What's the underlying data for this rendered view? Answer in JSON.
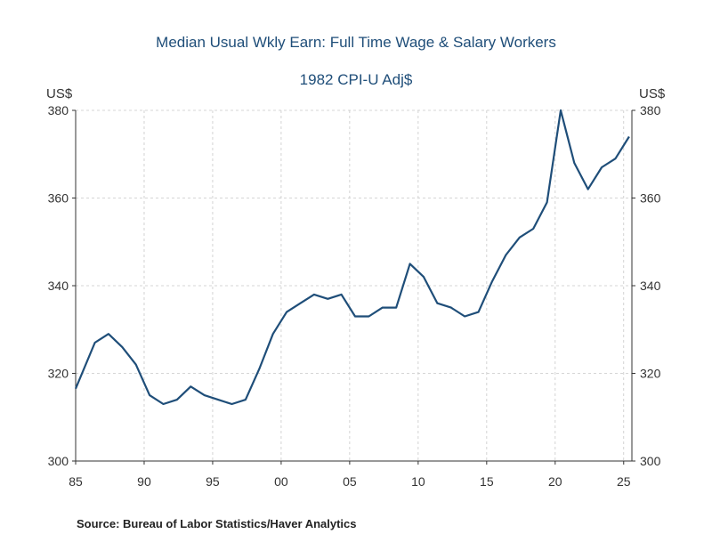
{
  "chart_data": {
    "type": "line",
    "title": "Median Usual Wkly Earn: Full Time Wage & Salary Workers",
    "subtitle": "1982 CPI-U Adj$",
    "y_unit_left": "US$",
    "y_unit_right": "US$",
    "ylim": [
      300,
      380
    ],
    "y_ticks": [
      300,
      320,
      340,
      360,
      380
    ],
    "xlim": [
      1985,
      2025.6
    ],
    "x_ticks": [
      {
        "value": 1985,
        "label": "85"
      },
      {
        "value": 1990,
        "label": "90"
      },
      {
        "value": 1995,
        "label": "95"
      },
      {
        "value": 2000,
        "label": "00"
      },
      {
        "value": 2005,
        "label": "05"
      },
      {
        "value": 2010,
        "label": "10"
      },
      {
        "value": 2015,
        "label": "15"
      },
      {
        "value": 2020,
        "label": "20"
      },
      {
        "value": 2025,
        "label": "25"
      }
    ],
    "grid": true,
    "legend": "none",
    "series": [
      {
        "color": "#1f4e79",
        "x": [
          1985.0,
          1986.4,
          1987.4,
          1988.4,
          1989.4,
          1990.4,
          1991.4,
          1992.4,
          1993.4,
          1994.4,
          1995.4,
          1996.4,
          1997.4,
          1998.4,
          1999.4,
          2000.4,
          2001.4,
          2002.4,
          2003.4,
          2004.4,
          2005.4,
          2006.4,
          2007.4,
          2008.4,
          2009.4,
          2010.4,
          2011.4,
          2012.4,
          2013.4,
          2014.4,
          2015.4,
          2016.4,
          2017.4,
          2018.4,
          2019.4,
          2020.4,
          2021.4,
          2022.4,
          2023.4,
          2024.4,
          2025.4
        ],
        "y": [
          316.5,
          327,
          329,
          326,
          322,
          315,
          313,
          314,
          317,
          315,
          314,
          313,
          314,
          321,
          329,
          334,
          336,
          338,
          337,
          338,
          333,
          333,
          335,
          335,
          345,
          342,
          336,
          335,
          333,
          334,
          341,
          347,
          351,
          353,
          359,
          380,
          368,
          362,
          367,
          369,
          374
        ]
      }
    ]
  },
  "source": "Source:  Bureau of Labor Statistics/Haver Analytics"
}
